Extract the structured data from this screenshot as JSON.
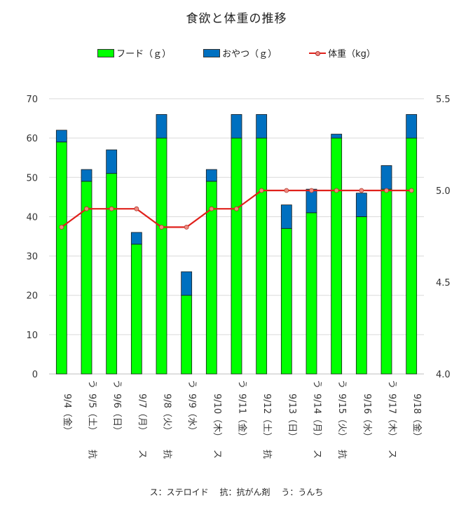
{
  "chart_data": {
    "type": "bar",
    "title": "食欲と体重の推移",
    "categories": [
      "9/4（金）",
      "9/5（土）",
      "9/6（日）",
      "9/7（月）",
      "9/8（火）",
      "9/9（水）",
      "9/10（木）",
      "9/11（金）",
      "9/12（土）",
      "9/13（日）",
      "9/14（月）",
      "9/15（火）",
      "9/16（水）",
      "9/17（木）",
      "9/18（金）"
    ],
    "prefixes": [
      "",
      "抗",
      "",
      "ス",
      "抗",
      "",
      "ス",
      "",
      "抗",
      "",
      "ス",
      "抗",
      "",
      "ス",
      ""
    ],
    "suffixes": [
      "",
      "う",
      "う",
      "",
      "",
      "う",
      "",
      "う",
      "",
      "",
      "う",
      "う",
      "",
      "う",
      ""
    ],
    "series": [
      {
        "name": "フード（ｇ）",
        "kind": "stacked-bar",
        "axis": "left",
        "color": "#00ff00",
        "values": [
          59,
          49,
          51,
          33,
          60,
          20,
          49,
          60,
          60,
          37,
          41,
          60,
          40,
          47,
          60
        ]
      },
      {
        "name": "おやつ（ｇ）",
        "kind": "stacked-bar",
        "axis": "left",
        "color": "#0070c0",
        "values": [
          3,
          3,
          6,
          3,
          6,
          6,
          3,
          6,
          6,
          6,
          6,
          1,
          6,
          6,
          6
        ]
      },
      {
        "name": "体重（kg）",
        "kind": "line",
        "axis": "right",
        "color": "#e0201b",
        "values": [
          4.8,
          4.9,
          4.9,
          4.9,
          4.8,
          4.8,
          4.9,
          4.9,
          5.0,
          5.0,
          5.0,
          5.0,
          5.0,
          5.0,
          5.0
        ]
      }
    ],
    "y_left": {
      "min": 0,
      "max": 70,
      "ticks": [
        "0",
        "10",
        "20",
        "30",
        "40",
        "50",
        "60",
        "70"
      ]
    },
    "y_right": {
      "min": 4.0,
      "max": 5.5,
      "ticks": [
        "4.0",
        "4.5",
        "5.0",
        "5.5"
      ]
    },
    "grid": true,
    "legend_position": "top"
  },
  "footnote": {
    "steroid": "ス：ステロイド",
    "anticancer": "抗：抗がん剤",
    "poop": "う：うんち"
  }
}
